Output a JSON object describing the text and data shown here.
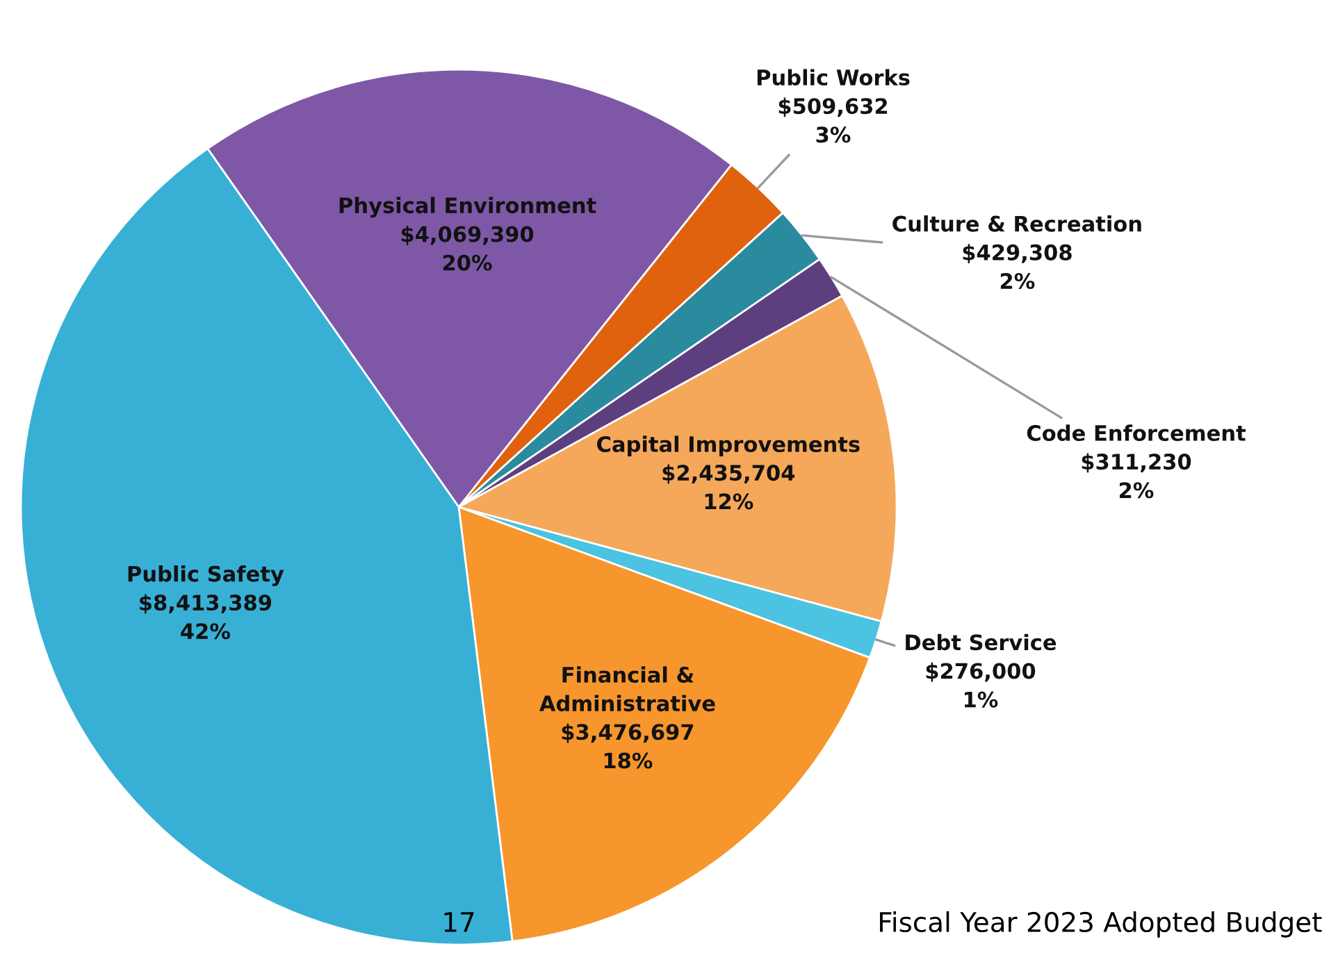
{
  "chart_data": {
    "type": "pie",
    "categories": [
      "Physical Environment",
      "Public Works",
      "Culture & Recreation",
      "Code Enforcement",
      "Capital Improvements",
      "Debt Service",
      "Financial & Administrative",
      "Public Safety"
    ],
    "values": [
      4069390,
      509632,
      429308,
      311230,
      2435704,
      276000,
      3476697,
      8413389
    ],
    "colors": [
      "#7e58a6",
      "#e0620f",
      "#2a8a9e",
      "#5d3f80",
      "#f5a85a",
      "#4cc3e0",
      "#f7962d",
      "#38b0d6"
    ],
    "value_labels": [
      "$4,069,390\n20%",
      "$509,632\n3%",
      "$429,308\n2%",
      "$311,230\n2%",
      "$2,435,704\n12%",
      "$276,000\n1%",
      "$3,476,697\n18%",
      "$8,413,389\n42%"
    ],
    "annotations": [
      "17",
      "Fiscal Year 2023 Adopted Budget"
    ],
    "legend": false
  }
}
